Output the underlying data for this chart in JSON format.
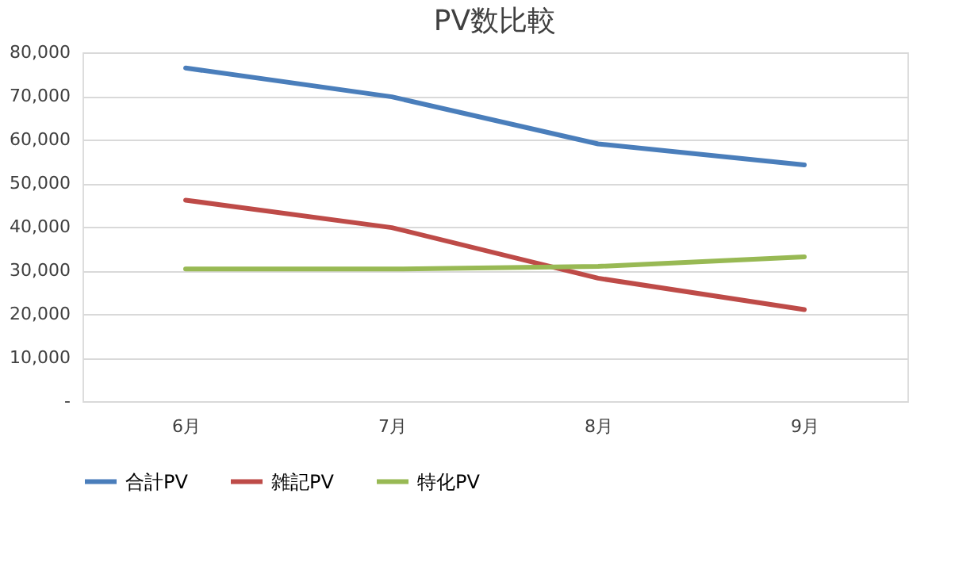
{
  "chart_data": {
    "type": "line",
    "title": "PV数比較",
    "categories": [
      "6月",
      "7月",
      "8月",
      "9月"
    ],
    "series": [
      {
        "name": "合計PV",
        "color": "#4a7ebb",
        "values": [
          76400,
          69800,
          59000,
          54200
        ]
      },
      {
        "name": "雑記PV",
        "color": "#be4b48",
        "values": [
          46100,
          39800,
          28200,
          21000
        ]
      },
      {
        "name": "特化PV",
        "color": "#98b954",
        "values": [
          30300,
          30300,
          30900,
          33100
        ]
      }
    ],
    "ylim": [
      0,
      80000
    ],
    "yticks": [
      {
        "value": 0,
        "label": "-"
      },
      {
        "value": 10000,
        "label": "10,000"
      },
      {
        "value": 20000,
        "label": "20,000"
      },
      {
        "value": 30000,
        "label": "30,000"
      },
      {
        "value": 40000,
        "label": "40,000"
      },
      {
        "value": 50000,
        "label": "50,000"
      },
      {
        "value": 60000,
        "label": "60,000"
      },
      {
        "value": 70000,
        "label": "70,000"
      },
      {
        "value": 80000,
        "label": "80,000"
      }
    ],
    "grid": "y",
    "legend": "bottom",
    "marker": "none",
    "line_style": "solid"
  }
}
